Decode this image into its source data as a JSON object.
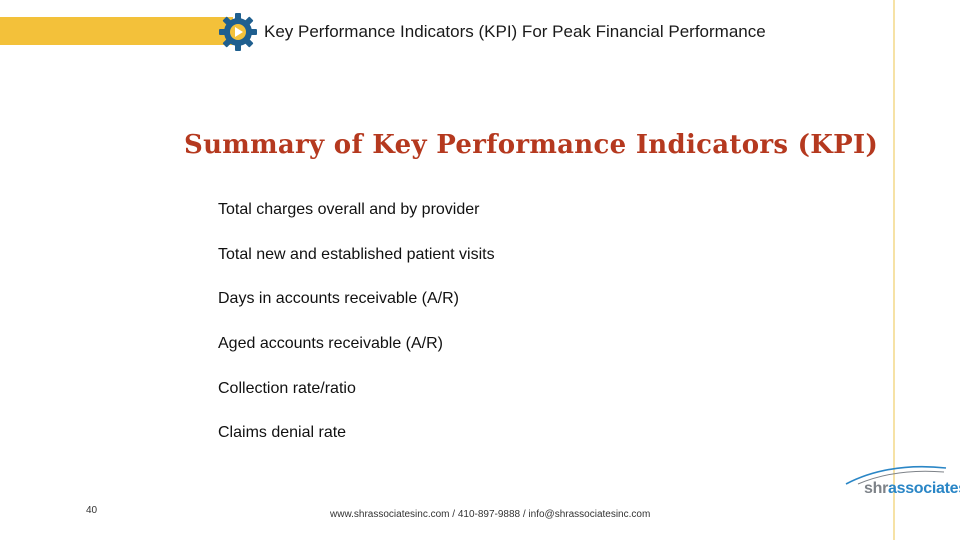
{
  "header": {
    "title": "Key Performance Indicators (KPI) For Peak Financial Performance",
    "accent_color": "#f3c13a",
    "icon": "gear-icon"
  },
  "slide": {
    "title": "Summary of Key Performance Indicators (KPI)",
    "title_color": "#b5391f",
    "items": [
      "Total charges overall and by provider",
      "Total new and established patient visits",
      "Days in accounts receivable (A/R)",
      "Aged accounts receivable (A/R)",
      "Collection rate/ratio",
      "Claims denial rate"
    ]
  },
  "footer": {
    "page_number": "40",
    "contact": "www.shrassociatesinc.com / 410-897-9888 / info@shrassociatesinc.com"
  },
  "logo": {
    "prefix": "shr",
    "suffix": "associates",
    "prefix_color": "#7d8288",
    "suffix_color": "#2a86c6"
  }
}
